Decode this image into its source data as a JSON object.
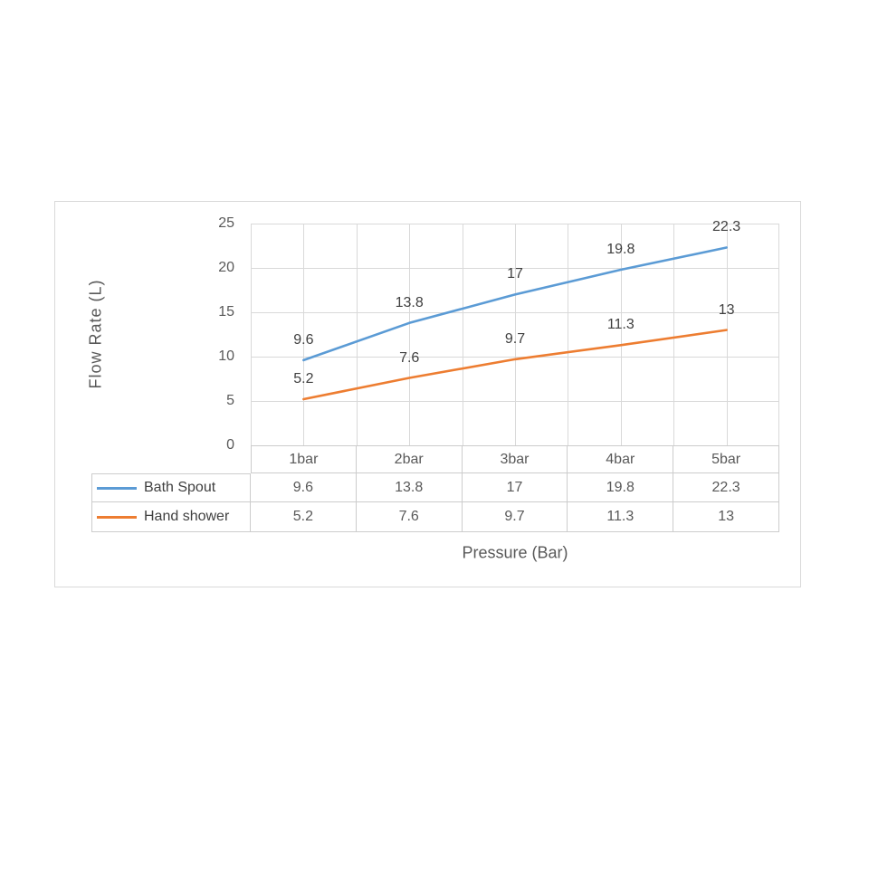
{
  "colors": {
    "background": "#FFFFFF",
    "chart_frame_border": "#D9D9D9",
    "gridline": "#D9D9D9",
    "table_border": "#CCCCCC",
    "axis_text": "#595959",
    "data_label_text": "#404040",
    "series_bath_spout": "#5B9BD5",
    "series_hand_shower": "#ED7D31"
  },
  "chart_data": {
    "type": "line",
    "title": "",
    "xlabel": "Pressure (Bar)",
    "ylabel": "Flow Rate (L)",
    "categories": [
      "1bar",
      "2bar",
      "3bar",
      "4bar",
      "5bar"
    ],
    "series": [
      {
        "name": "Bath Spout",
        "color": "#5B9BD5",
        "values": [
          9.6,
          13.8,
          17,
          19.8,
          22.3
        ],
        "labels": [
          "9.6",
          "13.8",
          "17",
          "19.8",
          "22.3"
        ]
      },
      {
        "name": "Hand shower",
        "color": "#ED7D31",
        "values": [
          5.2,
          7.6,
          9.7,
          11.3,
          13
        ],
        "labels": [
          "5.2",
          "7.6",
          "9.7",
          "11.3",
          "13"
        ]
      }
    ],
    "y_axis": {
      "min": 0,
      "max": 25,
      "step": 5,
      "tick_values": [
        0,
        5,
        10,
        15,
        20,
        25
      ],
      "tick_labels": [
        "0",
        "5",
        "10",
        "15",
        "20",
        "25"
      ]
    },
    "grid": true,
    "data_labels": true,
    "legend_position": "data-table-left"
  }
}
